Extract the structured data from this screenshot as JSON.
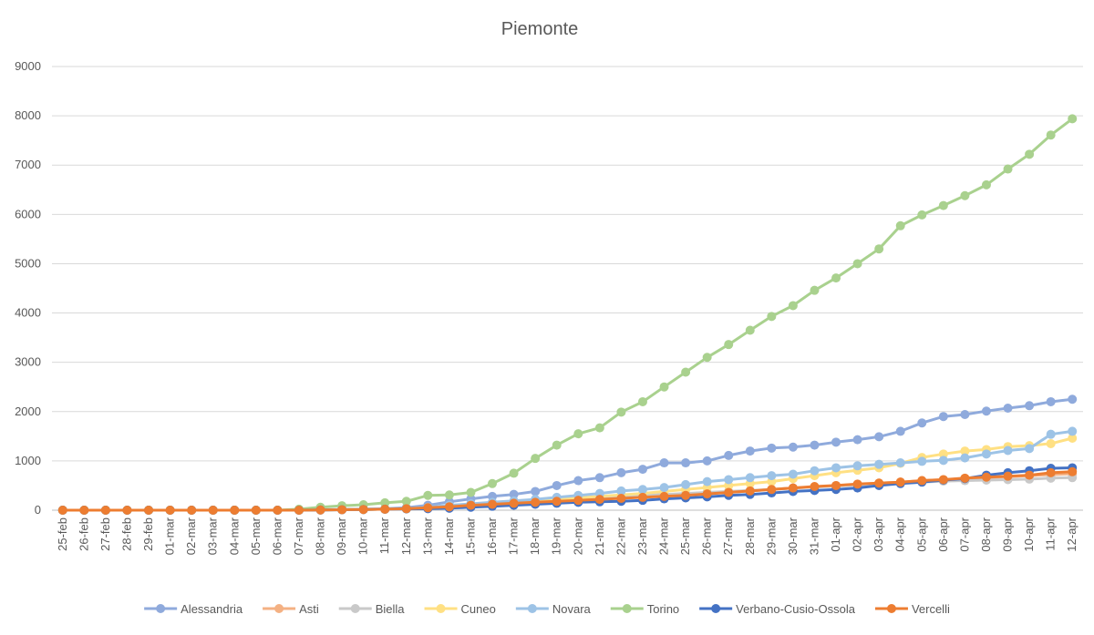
{
  "chart_data": {
    "type": "line",
    "title": "Piemonte",
    "xlabel": "",
    "ylabel": "",
    "ylim": [
      0,
      9000
    ],
    "yticks": [
      0,
      1000,
      2000,
      3000,
      4000,
      5000,
      6000,
      7000,
      8000,
      9000
    ],
    "grid": true,
    "legend_position": "bottom",
    "categories": [
      "25-feb",
      "26-feb",
      "27-feb",
      "28-feb",
      "29-feb",
      "01-mar",
      "02-mar",
      "03-mar",
      "04-mar",
      "05-mar",
      "06-mar",
      "07-mar",
      "08-mar",
      "09-mar",
      "10-mar",
      "11-mar",
      "12-mar",
      "13-mar",
      "14-mar",
      "15-mar",
      "16-mar",
      "17-mar",
      "18-mar",
      "19-mar",
      "20-mar",
      "21-mar",
      "22-mar",
      "23-mar",
      "24-mar",
      "25-mar",
      "26-mar",
      "27-mar",
      "28-mar",
      "29-mar",
      "30-mar",
      "31-mar",
      "01-apr",
      "02-apr",
      "03-apr",
      "04-apr",
      "05-apr",
      "06-apr",
      "07-apr",
      "08-apr",
      "09-apr",
      "10-apr",
      "11-apr",
      "12-apr"
    ],
    "series": [
      {
        "name": "Alessandria",
        "color": "#8faadc",
        "values": [
          0,
          0,
          0,
          0,
          0,
          0,
          0,
          0,
          0,
          0,
          0,
          0,
          10,
          15,
          20,
          30,
          50,
          100,
          170,
          230,
          280,
          320,
          380,
          500,
          600,
          660,
          760,
          830,
          960,
          960,
          1000,
          1110,
          1200,
          1260,
          1280,
          1320,
          1380,
          1430,
          1490,
          1600,
          1770,
          1900,
          1940,
          2010,
          2070,
          2120,
          2200,
          2250
        ]
      },
      {
        "name": "Asti",
        "color": "#f4b183",
        "values": [
          0,
          0,
          0,
          0,
          0,
          0,
          0,
          0,
          0,
          0,
          0,
          0,
          5,
          10,
          15,
          20,
          30,
          40,
          60,
          90,
          120,
          140,
          170,
          190,
          220,
          240,
          260,
          280,
          300,
          320,
          340,
          360,
          390,
          420,
          450,
          470,
          500,
          520,
          550,
          570,
          600,
          620,
          640,
          660,
          680,
          700,
          720,
          740
        ]
      },
      {
        "name": "Biella",
        "color": "#c9c9c9",
        "values": [
          0,
          0,
          0,
          0,
          0,
          0,
          0,
          0,
          0,
          0,
          0,
          0,
          5,
          10,
          15,
          20,
          30,
          50,
          80,
          110,
          140,
          170,
          200,
          230,
          250,
          270,
          290,
          300,
          320,
          340,
          360,
          380,
          400,
          420,
          450,
          470,
          490,
          510,
          530,
          550,
          570,
          590,
          600,
          610,
          620,
          630,
          650,
          660
        ]
      },
      {
        "name": "Cuneo",
        "color": "#ffe083",
        "values": [
          0,
          0,
          0,
          0,
          0,
          0,
          0,
          0,
          0,
          0,
          0,
          0,
          5,
          10,
          15,
          20,
          30,
          50,
          70,
          100,
          130,
          160,
          190,
          220,
          250,
          280,
          310,
          340,
          380,
          420,
          460,
          500,
          540,
          580,
          640,
          700,
          760,
          810,
          860,
          950,
          1070,
          1140,
          1200,
          1230,
          1290,
          1310,
          1350,
          1460
        ]
      },
      {
        "name": "Novara",
        "color": "#9dc3e6",
        "values": [
          0,
          0,
          0,
          0,
          0,
          0,
          0,
          0,
          0,
          0,
          0,
          0,
          5,
          10,
          15,
          20,
          30,
          60,
          100,
          130,
          160,
          190,
          220,
          260,
          300,
          340,
          390,
          420,
          460,
          520,
          580,
          620,
          660,
          700,
          730,
          800,
          860,
          900,
          930,
          960,
          990,
          1010,
          1060,
          1140,
          1210,
          1250,
          1540,
          1600
        ]
      },
      {
        "name": "Torino",
        "color": "#a9d18e",
        "values": [
          0,
          0,
          0,
          0,
          0,
          0,
          0,
          0,
          0,
          0,
          0,
          20,
          60,
          90,
          110,
          150,
          180,
          300,
          310,
          360,
          540,
          750,
          1050,
          1320,
          1550,
          1670,
          1990,
          2200,
          2500,
          2800,
          3100,
          3360,
          3650,
          3930,
          4150,
          4460,
          4710,
          5000,
          5300,
          5770,
          5990,
          6180,
          6380,
          6600,
          6920,
          7220,
          7610,
          7940
        ]
      },
      {
        "name": "Verbano-Cusio-Ossola",
        "color": "#4472c4",
        "values": [
          0,
          0,
          0,
          0,
          0,
          0,
          0,
          0,
          0,
          0,
          0,
          0,
          5,
          10,
          15,
          20,
          25,
          30,
          40,
          60,
          80,
          100,
          120,
          140,
          160,
          170,
          180,
          200,
          230,
          250,
          270,
          300,
          320,
          350,
          380,
          400,
          420,
          450,
          500,
          540,
          570,
          610,
          640,
          710,
          760,
          800,
          850,
          860
        ]
      },
      {
        "name": "Vercelli",
        "color": "#ed7d31",
        "values": [
          0,
          0,
          0,
          0,
          0,
          0,
          0,
          0,
          0,
          0,
          0,
          0,
          5,
          10,
          15,
          20,
          30,
          50,
          70,
          100,
          120,
          140,
          160,
          180,
          200,
          220,
          240,
          260,
          280,
          300,
          330,
          360,
          390,
          420,
          450,
          480,
          500,
          530,
          550,
          570,
          600,
          620,
          650,
          670,
          690,
          710,
          760,
          780
        ]
      }
    ]
  }
}
